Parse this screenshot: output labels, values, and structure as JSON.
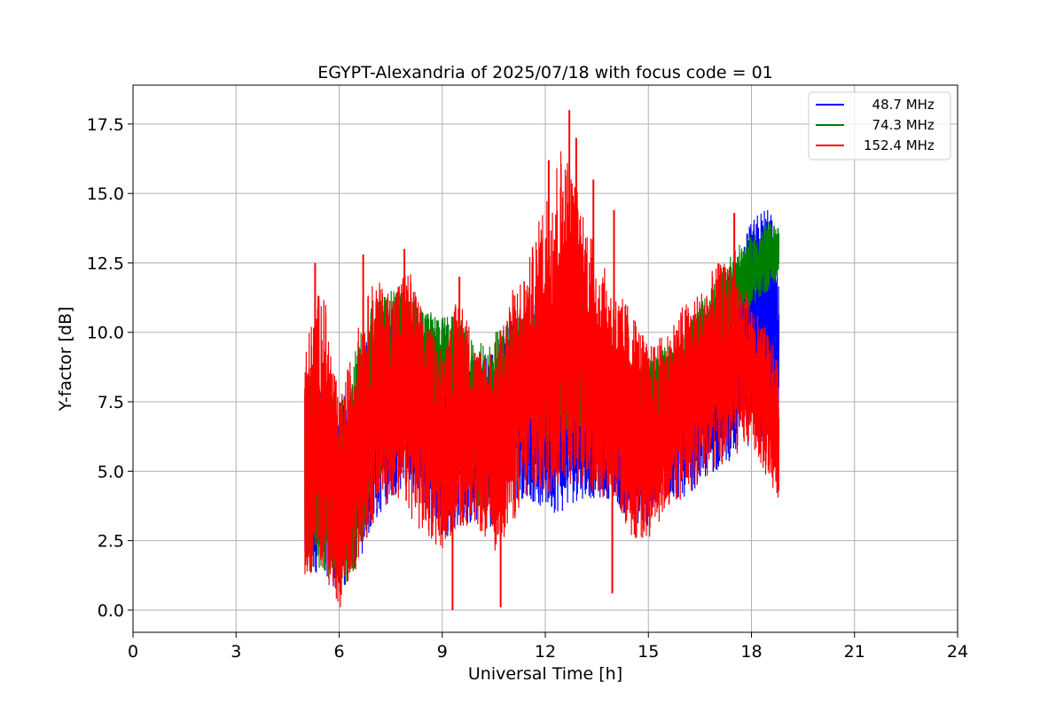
{
  "chart_data": {
    "type": "line",
    "title": "EGYPT-Alexandria of 2025/07/18 with focus code = 01",
    "xlabel": "Universal Time [h]",
    "ylabel": "Y-factor [dB]",
    "xlim": [
      0,
      24
    ],
    "ylim": [
      -0.8,
      18.9
    ],
    "xticks": [
      0,
      3,
      6,
      9,
      12,
      15,
      18,
      21,
      24
    ],
    "xtick_labels": [
      "0",
      "3",
      "6",
      "9",
      "12",
      "15",
      "18",
      "21",
      "24"
    ],
    "yticks": [
      0,
      2.5,
      5,
      7.5,
      10,
      12.5,
      15,
      17.5
    ],
    "ytick_labels": [
      "0.0",
      "2.5",
      "5.0",
      "7.5",
      "10.0",
      "12.5",
      "15.0",
      "17.5"
    ],
    "grid": true,
    "legend_position": "top-right",
    "series": [
      {
        "name": "  48.7 MHz",
        "color": "#0000ff",
        "envelope_x": [
          5.0,
          5.5,
          6.0,
          6.5,
          7.0,
          7.5,
          8.0,
          8.5,
          9.0,
          9.5,
          10.0,
          10.5,
          11.0,
          11.5,
          12.0,
          12.5,
          13.0,
          13.5,
          14.0,
          14.5,
          15.0,
          15.5,
          16.0,
          16.5,
          17.0,
          17.5,
          18.0,
          18.5,
          18.8
        ],
        "envelope_min": [
          1.0,
          1.5,
          0.5,
          1.5,
          3.0,
          4.0,
          4.5,
          3.5,
          2.5,
          3.0,
          3.0,
          3.0,
          4.0,
          4.0,
          3.5,
          3.5,
          4.0,
          4.0,
          4.0,
          3.0,
          3.0,
          4.0,
          4.0,
          4.5,
          5.0,
          5.5,
          6.0,
          5.5,
          6.0
        ],
        "envelope_max": [
          9.0,
          8.0,
          7.5,
          8.5,
          10.5,
          11.0,
          10.5,
          10.0,
          8.5,
          9.5,
          9.0,
          9.5,
          10.5,
          11.0,
          11.5,
          10.5,
          11.0,
          10.0,
          9.5,
          8.0,
          8.5,
          9.0,
          9.5,
          10.5,
          11.5,
          12.5,
          14.0,
          14.9,
          12.5
        ]
      },
      {
        "name": "  74.3 MHz",
        "color": "#008000",
        "envelope_x": [
          5.0,
          5.5,
          6.0,
          6.5,
          7.0,
          7.5,
          8.0,
          8.5,
          9.0,
          9.5,
          10.0,
          10.5,
          11.0,
          11.5,
          12.0,
          12.5,
          13.0,
          13.5,
          14.0,
          14.5,
          15.0,
          15.5,
          16.0,
          16.5,
          17.0,
          17.5,
          18.0,
          18.5,
          18.8
        ],
        "envelope_min": [
          1.2,
          1.5,
          0.5,
          1.5,
          3.5,
          6.5,
          7.5,
          7.0,
          7.0,
          7.0,
          3.5,
          3.0,
          7.0,
          6.5,
          6.0,
          6.0,
          6.5,
          6.0,
          6.0,
          5.5,
          5.5,
          6.5,
          6.5,
          7.5,
          9.0,
          10.0,
          11.0,
          11.5,
          12.0
        ],
        "envelope_max": [
          9.0,
          8.0,
          7.5,
          9.5,
          11.3,
          11.5,
          11.5,
          10.8,
          10.6,
          10.6,
          9.5,
          10.0,
          10.5,
          11.0,
          10.5,
          10.0,
          10.5,
          9.5,
          9.0,
          8.5,
          9.0,
          9.5,
          10.0,
          11.0,
          12.0,
          13.0,
          13.5,
          14.0,
          13.8
        ]
      },
      {
        "name": "152.4 MHz",
        "color": "#ff0000",
        "envelope_x": [
          5.0,
          5.5,
          6.0,
          6.5,
          7.0,
          7.5,
          8.0,
          8.5,
          9.0,
          9.5,
          10.0,
          10.5,
          11.0,
          11.5,
          12.0,
          12.5,
          13.0,
          13.5,
          14.0,
          14.5,
          15.0,
          15.5,
          16.0,
          16.5,
          17.0,
          17.5,
          18.0,
          18.5,
          18.8
        ],
        "envelope_min": [
          1.0,
          1.5,
          0.0,
          1.5,
          3.0,
          4.0,
          3.5,
          2.5,
          2.2,
          3.0,
          3.0,
          2.0,
          3.0,
          4.0,
          4.0,
          4.5,
          4.5,
          4.0,
          4.0,
          2.5,
          2.5,
          3.5,
          4.0,
          4.5,
          5.0,
          5.5,
          6.0,
          4.5,
          4.0
        ],
        "envelope_max": [
          9.5,
          12.0,
          7.5,
          10.0,
          12.0,
          11.5,
          12.5,
          10.5,
          9.5,
          11.5,
          9.5,
          9.5,
          11.5,
          12.5,
          15.0,
          17.0,
          15.0,
          13.0,
          11.5,
          11.0,
          9.5,
          10.0,
          11.0,
          11.5,
          12.5,
          12.5,
          11.0,
          10.0,
          9.0
        ],
        "spikes": [
          {
            "x": 5.3,
            "y": 12.5
          },
          {
            "x": 6.7,
            "y": 12.8
          },
          {
            "x": 7.9,
            "y": 13.0
          },
          {
            "x": 9.3,
            "y": 0.0
          },
          {
            "x": 9.5,
            "y": 12.0
          },
          {
            "x": 10.7,
            "y": 0.1
          },
          {
            "x": 12.1,
            "y": 16.2
          },
          {
            "x": 12.7,
            "y": 18.0
          },
          {
            "x": 12.9,
            "y": 17.0
          },
          {
            "x": 13.4,
            "y": 15.5
          },
          {
            "x": 13.95,
            "y": 0.6
          },
          {
            "x": 14.0,
            "y": 14.4
          },
          {
            "x": 17.5,
            "y": 14.3
          }
        ]
      }
    ]
  }
}
